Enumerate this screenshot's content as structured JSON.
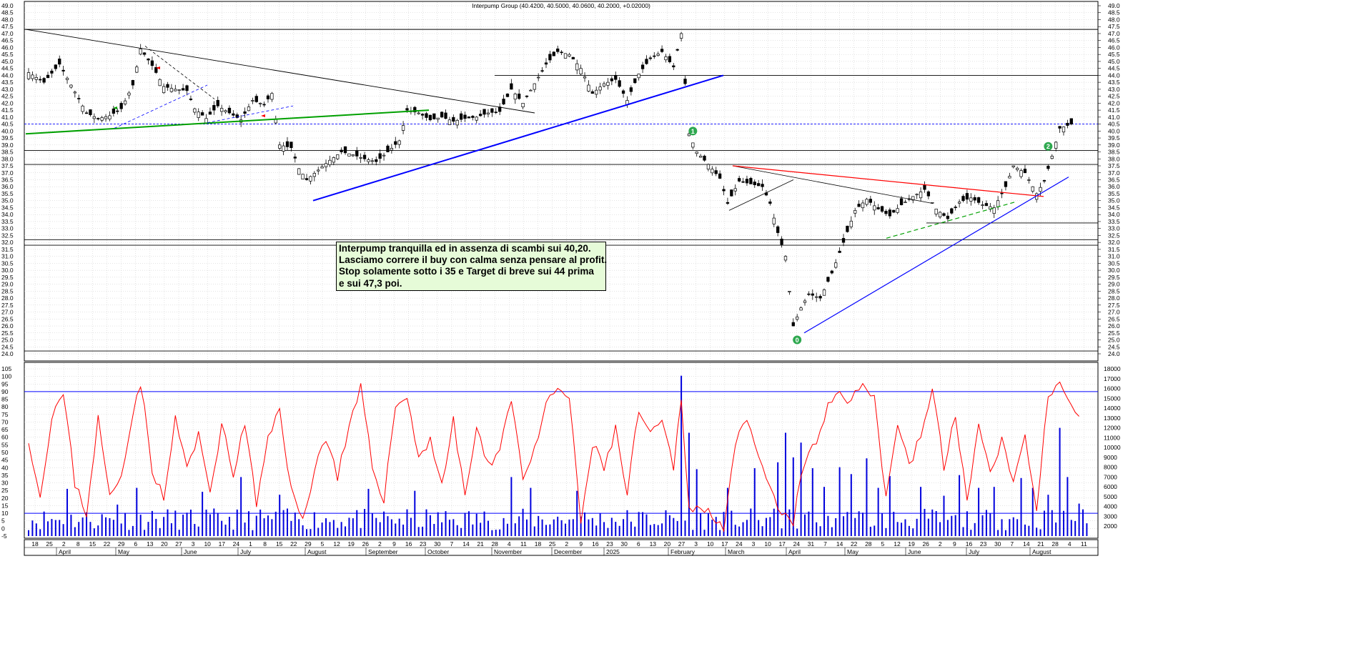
{
  "chart_data": [
    {
      "type": "candlestick",
      "title": "Interpump Group (40.4200, 40.5000, 40.0600, 40.2000, +0.02000)",
      "ylim": [
        24.0,
        49.0
      ],
      "y_ticks": [
        "24.0",
        "24.5",
        "25.0",
        "25.5",
        "26.0",
        "26.5",
        "27.0",
        "27.5",
        "28.0",
        "28.5",
        "29.0",
        "29.5",
        "30.0",
        "30.5",
        "31.0",
        "31.5",
        "32.0",
        "32.5",
        "33.0",
        "33.5",
        "34.0",
        "34.5",
        "35.0",
        "35.5",
        "36.0",
        "36.5",
        "37.0",
        "37.5",
        "38.0",
        "38.5",
        "39.0",
        "39.5",
        "40.0",
        "40.5",
        "41.0",
        "41.5",
        "42.0",
        "42.5",
        "43.0",
        "43.5",
        "44.0",
        "44.5",
        "45.0",
        "45.5",
        "46.0",
        "46.5",
        "47.0",
        "47.5",
        "48.0",
        "48.5",
        "49.0"
      ],
      "last_price": 40.5,
      "close_series_approx": [
        {
          "x": 0,
          "y": 44.2
        },
        {
          "x": 4,
          "y": 43.5
        },
        {
          "x": 8,
          "y": 44.8
        },
        {
          "x": 12,
          "y": 42.8
        },
        {
          "x": 15,
          "y": 41.3
        },
        {
          "x": 18,
          "y": 40.9
        },
        {
          "x": 21,
          "y": 41.1
        },
        {
          "x": 24,
          "y": 41.6
        },
        {
          "x": 27,
          "y": 43.3
        },
        {
          "x": 29,
          "y": 45.9
        },
        {
          "x": 32,
          "y": 44.7
        },
        {
          "x": 35,
          "y": 43.2
        },
        {
          "x": 38,
          "y": 43.0
        },
        {
          "x": 41,
          "y": 42.9
        },
        {
          "x": 43,
          "y": 41.6
        },
        {
          "x": 46,
          "y": 40.9
        },
        {
          "x": 49,
          "y": 41.8
        },
        {
          "x": 52,
          "y": 41.3
        },
        {
          "x": 55,
          "y": 40.8
        },
        {
          "x": 58,
          "y": 42.2
        },
        {
          "x": 61,
          "y": 41.9
        },
        {
          "x": 63,
          "y": 42.7
        },
        {
          "x": 65,
          "y": 39.0
        },
        {
          "x": 68,
          "y": 38.8
        },
        {
          "x": 70,
          "y": 37.3
        },
        {
          "x": 72,
          "y": 36.5
        },
        {
          "x": 75,
          "y": 37.2
        },
        {
          "x": 78,
          "y": 37.9
        },
        {
          "x": 81,
          "y": 38.5
        },
        {
          "x": 84,
          "y": 38.3
        },
        {
          "x": 87,
          "y": 38.0
        },
        {
          "x": 90,
          "y": 37.8
        },
        {
          "x": 93,
          "y": 38.5
        },
        {
          "x": 96,
          "y": 39.3
        },
        {
          "x": 98,
          "y": 41.5
        },
        {
          "x": 101,
          "y": 41.3
        },
        {
          "x": 104,
          "y": 40.8
        },
        {
          "x": 107,
          "y": 41.0
        },
        {
          "x": 110,
          "y": 40.7
        },
        {
          "x": 113,
          "y": 40.9
        },
        {
          "x": 116,
          "y": 41.0
        },
        {
          "x": 119,
          "y": 41.3
        },
        {
          "x": 122,
          "y": 41.4
        },
        {
          "x": 125,
          "y": 43.0
        },
        {
          "x": 128,
          "y": 42.0
        },
        {
          "x": 131,
          "y": 43.4
        },
        {
          "x": 134,
          "y": 44.8
        },
        {
          "x": 137,
          "y": 45.7
        },
        {
          "x": 140,
          "y": 45.5
        },
        {
          "x": 143,
          "y": 44.5
        },
        {
          "x": 146,
          "y": 42.7
        },
        {
          "x": 149,
          "y": 43.4
        },
        {
          "x": 152,
          "y": 43.7
        },
        {
          "x": 155,
          "y": 42.2
        },
        {
          "x": 158,
          "y": 44.1
        },
        {
          "x": 161,
          "y": 45.2
        },
        {
          "x": 164,
          "y": 45.7
        },
        {
          "x": 167,
          "y": 44.6
        },
        {
          "x": 169,
          "y": 47.0
        },
        {
          "x": 171,
          "y": 39.8
        },
        {
          "x": 173,
          "y": 38.5
        },
        {
          "x": 176,
          "y": 37.6
        },
        {
          "x": 179,
          "y": 36.6
        },
        {
          "x": 181,
          "y": 34.8
        },
        {
          "x": 184,
          "y": 36.4
        },
        {
          "x": 187,
          "y": 36.2
        },
        {
          "x": 190,
          "y": 36.0
        },
        {
          "x": 192,
          "y": 34.8
        },
        {
          "x": 194,
          "y": 32.7
        },
        {
          "x": 196,
          "y": 31.0
        },
        {
          "x": 198,
          "y": 26.0
        },
        {
          "x": 200,
          "y": 27.3
        },
        {
          "x": 202,
          "y": 28.3
        },
        {
          "x": 205,
          "y": 28.0
        },
        {
          "x": 208,
          "y": 29.8
        },
        {
          "x": 211,
          "y": 32.0
        },
        {
          "x": 214,
          "y": 34.3
        },
        {
          "x": 217,
          "y": 35.1
        },
        {
          "x": 220,
          "y": 34.4
        },
        {
          "x": 223,
          "y": 33.9
        },
        {
          "x": 226,
          "y": 34.7
        },
        {
          "x": 229,
          "y": 35.3
        },
        {
          "x": 232,
          "y": 35.8
        },
        {
          "x": 235,
          "y": 34.4
        },
        {
          "x": 238,
          "y": 33.7
        },
        {
          "x": 241,
          "y": 34.9
        },
        {
          "x": 244,
          "y": 35.2
        },
        {
          "x": 247,
          "y": 34.7
        },
        {
          "x": 250,
          "y": 34.5
        },
        {
          "x": 253,
          "y": 36.0
        },
        {
          "x": 255,
          "y": 37.5
        },
        {
          "x": 258,
          "y": 37.0
        },
        {
          "x": 261,
          "y": 35.5
        },
        {
          "x": 263,
          "y": 36.4
        },
        {
          "x": 265,
          "y": 38.2
        },
        {
          "x": 267,
          "y": 40.2
        },
        {
          "x": 270,
          "y": 40.5
        }
      ],
      "annotations": [
        {
          "label": "1",
          "at": {
            "x": 172,
            "y": 40.0
          }
        },
        {
          "label": "0",
          "at": {
            "x": 199,
            "y": 25.0
          }
        },
        {
          "label": "2",
          "at": {
            "x": 264,
            "y": 38.9
          }
        }
      ]
    },
    {
      "type": "line",
      "title": "",
      "ylim": [
        -5,
        105
      ],
      "y_ticks": [
        "-5",
        "0",
        "5",
        "10",
        "15",
        "20",
        "25",
        "30",
        "35",
        "40",
        "45",
        "50",
        "55",
        "60",
        "65",
        "70",
        "75",
        "80",
        "85",
        "90",
        "95",
        "100",
        "105"
      ],
      "horizontal_levels": [
        10,
        90
      ],
      "series": [
        {
          "values_approx": [
            {
              "x": 0,
              "y": 60
            },
            {
              "x": 3,
              "y": 20
            },
            {
              "x": 6,
              "y": 75
            },
            {
              "x": 9,
              "y": 88
            },
            {
              "x": 12,
              "y": 30
            },
            {
              "x": 15,
              "y": 10
            },
            {
              "x": 18,
              "y": 72
            },
            {
              "x": 21,
              "y": 20
            },
            {
              "x": 24,
              "y": 35
            },
            {
              "x": 27,
              "y": 78
            },
            {
              "x": 29,
              "y": 96
            },
            {
              "x": 32,
              "y": 40
            },
            {
              "x": 35,
              "y": 18
            },
            {
              "x": 38,
              "y": 72
            },
            {
              "x": 41,
              "y": 40
            },
            {
              "x": 44,
              "y": 60
            },
            {
              "x": 47,
              "y": 25
            },
            {
              "x": 50,
              "y": 68
            },
            {
              "x": 53,
              "y": 35
            },
            {
              "x": 56,
              "y": 70
            },
            {
              "x": 59,
              "y": 15
            },
            {
              "x": 62,
              "y": 58
            },
            {
              "x": 65,
              "y": 80
            },
            {
              "x": 68,
              "y": 25
            },
            {
              "x": 71,
              "y": 4
            },
            {
              "x": 74,
              "y": 40
            },
            {
              "x": 77,
              "y": 60
            },
            {
              "x": 80,
              "y": 35
            },
            {
              "x": 83,
              "y": 65
            },
            {
              "x": 86,
              "y": 92
            },
            {
              "x": 89,
              "y": 40
            },
            {
              "x": 92,
              "y": 20
            },
            {
              "x": 95,
              "y": 80
            },
            {
              "x": 98,
              "y": 88
            },
            {
              "x": 101,
              "y": 45
            },
            {
              "x": 104,
              "y": 60
            },
            {
              "x": 107,
              "y": 28
            },
            {
              "x": 110,
              "y": 70
            },
            {
              "x": 113,
              "y": 22
            },
            {
              "x": 116,
              "y": 65
            },
            {
              "x": 119,
              "y": 40
            },
            {
              "x": 122,
              "y": 55
            },
            {
              "x": 125,
              "y": 85
            },
            {
              "x": 128,
              "y": 35
            },
            {
              "x": 131,
              "y": 50
            },
            {
              "x": 134,
              "y": 80
            },
            {
              "x": 137,
              "y": 93
            },
            {
              "x": 140,
              "y": 85
            },
            {
              "x": 143,
              "y": 4
            },
            {
              "x": 146,
              "y": 55
            },
            {
              "x": 149,
              "y": 40
            },
            {
              "x": 152,
              "y": 65
            },
            {
              "x": 155,
              "y": 22
            },
            {
              "x": 158,
              "y": 78
            },
            {
              "x": 161,
              "y": 60
            },
            {
              "x": 164,
              "y": 70
            },
            {
              "x": 167,
              "y": 40
            },
            {
              "x": 169,
              "y": 85
            },
            {
              "x": 171,
              "y": 15
            },
            {
              "x": 174,
              "y": 12
            },
            {
              "x": 177,
              "y": 10
            },
            {
              "x": 180,
              "y": 2
            },
            {
              "x": 183,
              "y": 55
            },
            {
              "x": 186,
              "y": 70
            },
            {
              "x": 189,
              "y": 45
            },
            {
              "x": 192,
              "y": 25
            },
            {
              "x": 195,
              "y": 8
            },
            {
              "x": 198,
              "y": 5
            },
            {
              "x": 201,
              "y": 45
            },
            {
              "x": 204,
              "y": 55
            },
            {
              "x": 207,
              "y": 80
            },
            {
              "x": 210,
              "y": 92
            },
            {
              "x": 213,
              "y": 82
            },
            {
              "x": 216,
              "y": 96
            },
            {
              "x": 219,
              "y": 88
            },
            {
              "x": 222,
              "y": 20
            },
            {
              "x": 225,
              "y": 70
            },
            {
              "x": 228,
              "y": 42
            },
            {
              "x": 231,
              "y": 60
            },
            {
              "x": 234,
              "y": 93
            },
            {
              "x": 237,
              "y": 40
            },
            {
              "x": 240,
              "y": 75
            },
            {
              "x": 243,
              "y": 18
            },
            {
              "x": 246,
              "y": 65
            },
            {
              "x": 249,
              "y": 40
            },
            {
              "x": 252,
              "y": 58
            },
            {
              "x": 255,
              "y": 30
            },
            {
              "x": 258,
              "y": 60
            },
            {
              "x": 261,
              "y": 15
            },
            {
              "x": 264,
              "y": 86
            },
            {
              "x": 267,
              "y": 93
            },
            {
              "x": 269,
              "y": 82
            },
            {
              "x": 272,
              "y": 70
            }
          ]
        }
      ]
    },
    {
      "type": "bar",
      "title": "",
      "ylim": [
        1000,
        18000
      ],
      "y_ticks": [
        "2000",
        "3000",
        "4000",
        "5000",
        "6000",
        "7000",
        "8000",
        "9000",
        "10000",
        "11000",
        "12000",
        "13000",
        "14000",
        "15000",
        "16000",
        "17000",
        "18000"
      ],
      "values_approx": [
        {
          "x": 10,
          "y": 5800
        },
        {
          "x": 23,
          "y": 4200
        },
        {
          "x": 28,
          "y": 5900
        },
        {
          "x": 45,
          "y": 5500
        },
        {
          "x": 55,
          "y": 7000
        },
        {
          "x": 65,
          "y": 5200
        },
        {
          "x": 88,
          "y": 5800
        },
        {
          "x": 100,
          "y": 5600
        },
        {
          "x": 125,
          "y": 7000
        },
        {
          "x": 130,
          "y": 5900
        },
        {
          "x": 142,
          "y": 5600
        },
        {
          "x": 169,
          "y": 17300
        },
        {
          "x": 171,
          "y": 11500
        },
        {
          "x": 173,
          "y": 7800
        },
        {
          "x": 181,
          "y": 5900
        },
        {
          "x": 188,
          "y": 7900
        },
        {
          "x": 194,
          "y": 8500
        },
        {
          "x": 196,
          "y": 11500
        },
        {
          "x": 198,
          "y": 9000
        },
        {
          "x": 200,
          "y": 10500
        },
        {
          "x": 203,
          "y": 7900
        },
        {
          "x": 206,
          "y": 6000
        },
        {
          "x": 210,
          "y": 8000
        },
        {
          "x": 213,
          "y": 7300
        },
        {
          "x": 217,
          "y": 8900
        },
        {
          "x": 220,
          "y": 5900
        },
        {
          "x": 223,
          "y": 7100
        },
        {
          "x": 231,
          "y": 6000
        },
        {
          "x": 237,
          "y": 5100
        },
        {
          "x": 241,
          "y": 7200
        },
        {
          "x": 246,
          "y": 5900
        },
        {
          "x": 250,
          "y": 6000
        },
        {
          "x": 257,
          "y": 6900
        },
        {
          "x": 260,
          "y": 5900
        },
        {
          "x": 264,
          "y": 5200
        },
        {
          "x": 267,
          "y": 12000
        },
        {
          "x": 269,
          "y": 7000
        },
        {
          "x": 272,
          "y": 4300
        },
        {
          "x": 274,
          "y": 2300
        }
      ]
    }
  ],
  "x_axis": {
    "day_ticks": [
      "18",
      "25",
      "2",
      "8",
      "15",
      "22",
      "29",
      "6",
      "13",
      "20",
      "27",
      "3",
      "10",
      "17",
      "24",
      "1",
      "8",
      "15",
      "22",
      "29",
      "5",
      "12",
      "19",
      "26",
      "2",
      "9",
      "16",
      "23",
      "30",
      "7",
      "14",
      "21",
      "28",
      "4",
      "11",
      "18",
      "25",
      "2",
      "9",
      "16",
      "23",
      "30",
      "6",
      "13",
      "20",
      "27",
      "3",
      "10",
      "17",
      "24",
      "3",
      "10",
      "17",
      "24",
      "31",
      "7",
      "14",
      "22",
      "28",
      "5",
      "12",
      "19",
      "26",
      "2",
      "9",
      "16",
      "23",
      "30",
      "7",
      "14",
      "21",
      "28",
      "4",
      "11",
      "18",
      "25",
      "1",
      "8"
    ],
    "month_labels": [
      "April",
      "May",
      "June",
      "July",
      "August",
      "September",
      "October",
      "November",
      "December",
      "2025",
      "February",
      "March",
      "April",
      "May",
      "June",
      "July",
      "August"
    ]
  },
  "annotation_text": {
    "line1": "Interpump tranquilla ed in assenza di scambi sui 40,20.",
    "line2": "Lasciamo correre il buy con calma senza pensare al profit.",
    "line3": "Stop solamente sotto i 35 e Target di breve sui 44 prima",
    "line4": "e sui 47,3 poi."
  },
  "colors": {
    "grid": "#c8c8c8",
    "candle": "#000000",
    "oscillator": "#ff0000",
    "volume": "#0000dd",
    "trend_blue": "#0000ff",
    "trend_green": "#00a000",
    "trend_red": "#ff0000",
    "marker_green": "#2ea84f",
    "note_bg": "#e6fbd8"
  }
}
